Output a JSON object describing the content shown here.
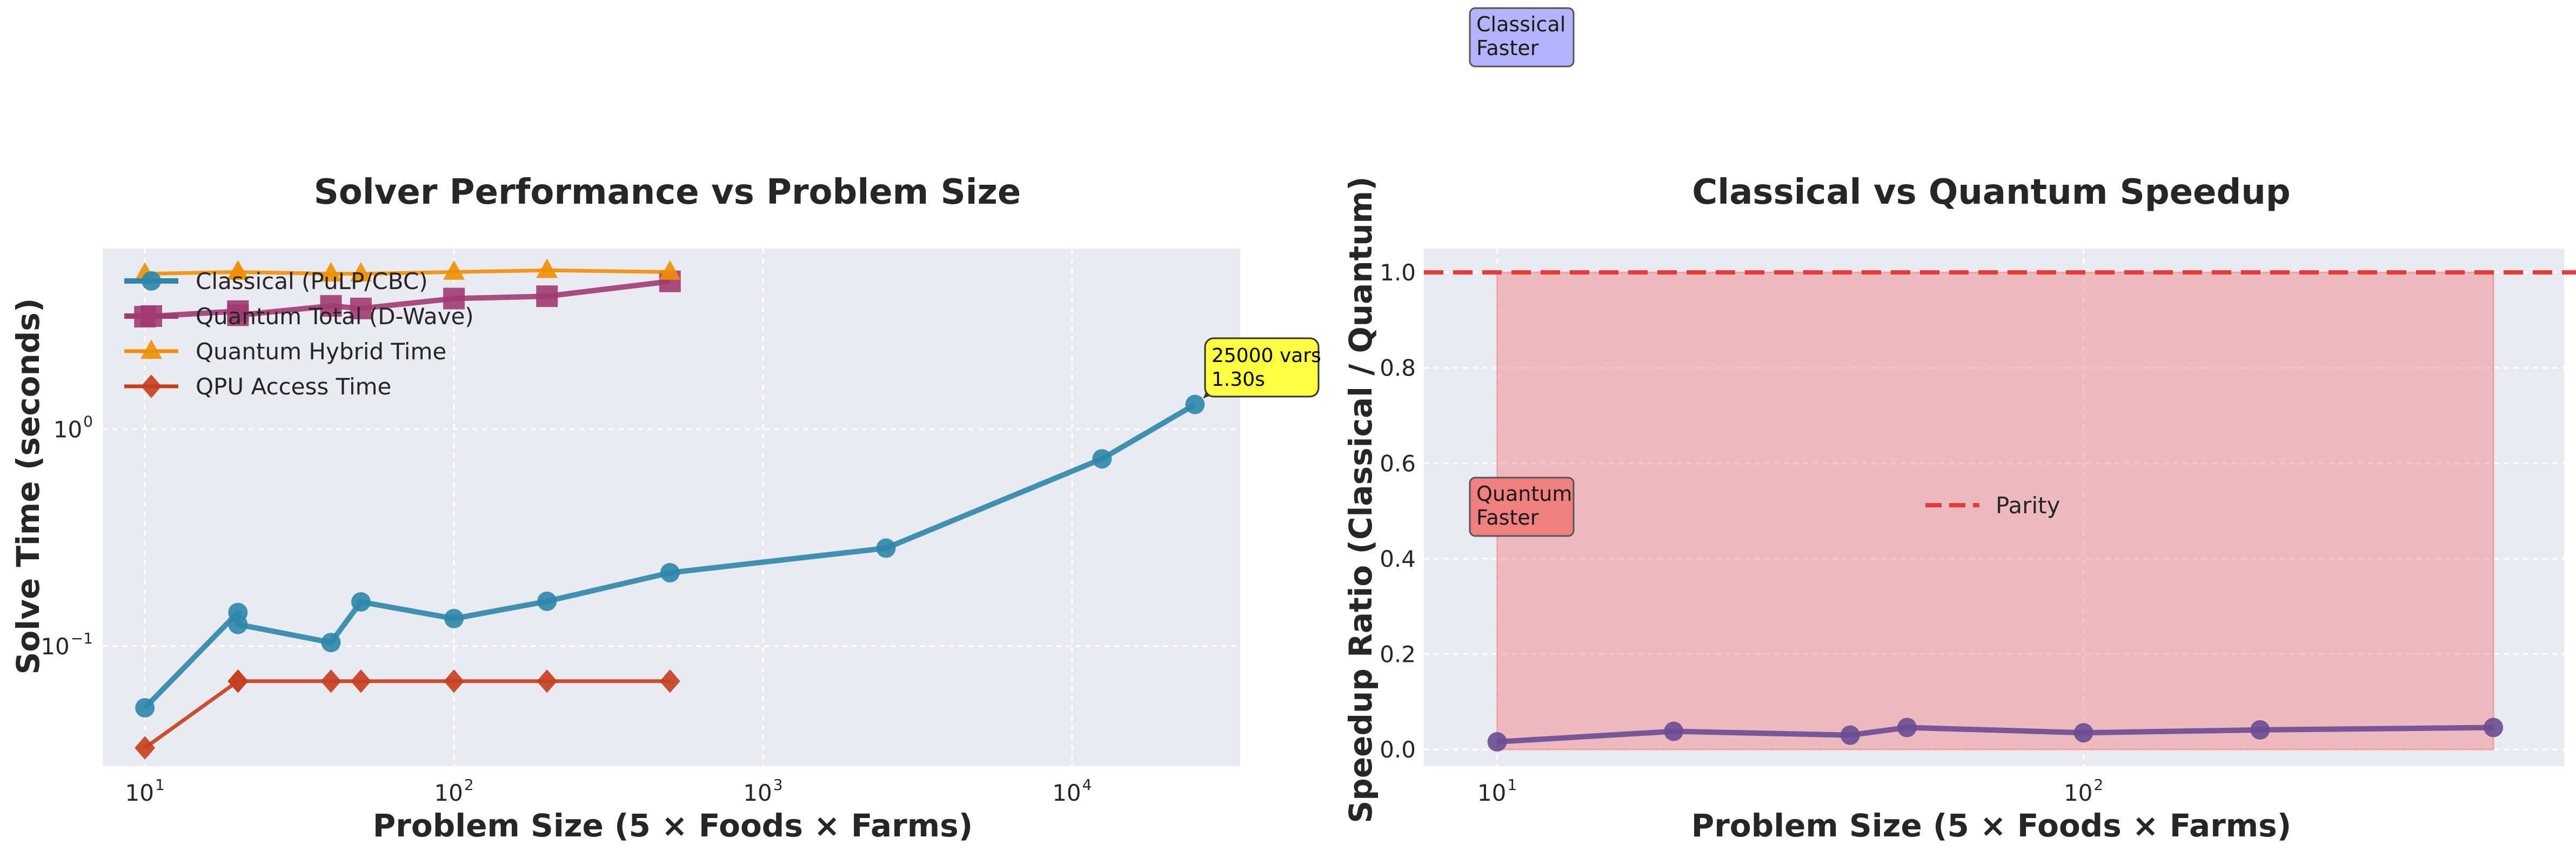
{
  "chart_data": [
    {
      "type": "line",
      "title": "Solver Performance vs Problem Size",
      "xlabel": "Problem Size (5 × Foods × Farms)",
      "ylabel": "Solve Time (seconds)",
      "xscale": "log",
      "yscale": "log",
      "xlim": [
        7.3,
        35000
      ],
      "ylim": [
        0.028,
        6.8
      ],
      "x_ticks": [
        {
          "base": "10",
          "exp": "1",
          "value": 10
        },
        {
          "base": "10",
          "exp": "2",
          "value": 100
        },
        {
          "base": "10",
          "exp": "3",
          "value": 1000
        },
        {
          "base": "10",
          "exp": "4",
          "value": 10000
        }
      ],
      "y_ticks": [
        {
          "base": "10",
          "exp": "−1",
          "value": 0.1
        },
        {
          "base": "10",
          "exp": "0",
          "value": 1
        }
      ],
      "grid": true,
      "legend_position": "top-left",
      "series": [
        {
          "name": "Classical (PuLP/CBC)",
          "color": "#2e86ab",
          "marker": "circle",
          "line_width": 10,
          "points": [
            [
              10,
              0.052
            ],
            [
              20,
              0.143
            ],
            [
              20,
              0.126
            ],
            [
              40,
              0.104
            ],
            [
              50,
              0.16
            ],
            [
              100,
              0.134
            ],
            [
              200,
              0.161
            ],
            [
              500,
              0.218
            ],
            [
              2500,
              0.283
            ],
            [
              12500,
              0.73
            ],
            [
              25000,
              1.3
            ]
          ]
        },
        {
          "name": "Quantum Total (D-Wave)",
          "color": "#a23b72",
          "marker": "square",
          "line_width": 10,
          "points": [
            [
              10,
              3.3
            ],
            [
              20,
              3.5
            ],
            [
              20,
              3.35
            ],
            [
              40,
              3.7
            ],
            [
              50,
              3.6
            ],
            [
              100,
              4.0
            ],
            [
              200,
              4.1
            ],
            [
              500,
              4.8
            ]
          ]
        },
        {
          "name": "Quantum Hybrid Time",
          "color": "#f18f01",
          "marker": "triangle",
          "line_width": 7,
          "points": [
            [
              10,
              5.2
            ],
            [
              20,
              5.3
            ],
            [
              20,
              5.3
            ],
            [
              40,
              5.2
            ],
            [
              50,
              5.2
            ],
            [
              100,
              5.3
            ],
            [
              200,
              5.4
            ],
            [
              500,
              5.3
            ]
          ]
        },
        {
          "name": "QPU Access Time",
          "color": "#c73e1d",
          "marker": "diamond",
          "line_width": 7,
          "points": [
            [
              10,
              0.034
            ],
            [
              20,
              0.069
            ],
            [
              20,
              0.069
            ],
            [
              40,
              0.069
            ],
            [
              50,
              0.069
            ],
            [
              100,
              0.069
            ],
            [
              200,
              0.069
            ],
            [
              500,
              0.069
            ]
          ]
        }
      ],
      "annotation": {
        "line1": "25000 vars",
        "line2": "1.30s",
        "x": 25000,
        "y": 1.3,
        "box_color": "#ffff44"
      }
    },
    {
      "type": "line",
      "title": "Classical vs Quantum Speedup",
      "xlabel": "Problem Size (5 × Foods × Farms)",
      "ylabel": "Speedup Ratio (Classical / Quantum)",
      "xscale": "log",
      "yscale": "linear",
      "xlim": [
        7.5,
        660
      ],
      "ylim": [
        -0.035,
        1.05
      ],
      "x_ticks": [
        {
          "base": "10",
          "exp": "1",
          "value": 10
        },
        {
          "base": "10",
          "exp": "2",
          "value": 100
        }
      ],
      "y_ticks": [
        {
          "label": "0.0",
          "value": 0
        },
        {
          "label": "0.2",
          "value": 0.2
        },
        {
          "label": "0.4",
          "value": 0.4
        },
        {
          "label": "0.6",
          "value": 0.6
        },
        {
          "label": "0.8",
          "value": 0.8
        },
        {
          "label": "1.0",
          "value": 1.0
        }
      ],
      "grid": true,
      "legend_position": "center",
      "series": [
        {
          "name": "",
          "color": "#6a4c93",
          "marker": "circle",
          "line_width": 10,
          "points": [
            [
              10,
              0.016
            ],
            [
              20,
              0.038
            ],
            [
              40,
              0.03
            ],
            [
              50,
              0.046
            ],
            [
              100,
              0.035
            ],
            [
              200,
              0.041
            ],
            [
              500,
              0.046
            ]
          ]
        }
      ],
      "parity": {
        "label": "Parity",
        "value": 1.0,
        "color": "#e83a3a"
      },
      "fill_region": {
        "x_from": 10,
        "x_to": 500,
        "y_from": 0,
        "y_to": 1.0,
        "color": "#f08080"
      },
      "region_labels": [
        {
          "line1": "Classical",
          "line2": "Faster",
          "color": "#b3b3ff"
        },
        {
          "line1": "Quantum",
          "line2": "Faster",
          "color": "#f08080"
        }
      ]
    }
  ]
}
